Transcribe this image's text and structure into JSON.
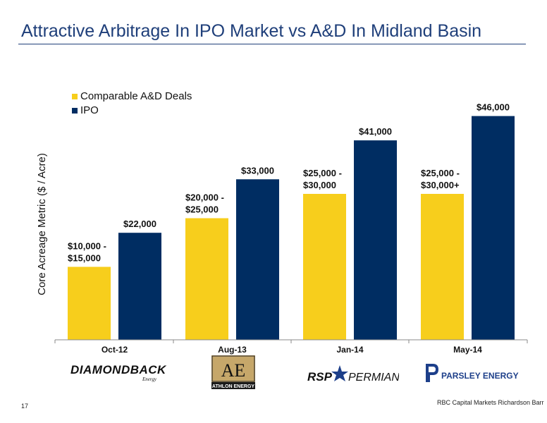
{
  "title": "Attractive Arbitrage In IPO Market vs A&D In Midland Basin",
  "colors": {
    "title": "#1f3f7a",
    "ad_series": "#f7ce1c",
    "ipo_series": "#002d62"
  },
  "chart_data": {
    "type": "bar",
    "categories": [
      "Oct-12",
      "Aug-13",
      "Jan-14",
      "May-14"
    ],
    "ylabel": "Core Acreage Metric ($ / Acre)",
    "xlabel": "",
    "ylim": [
      0,
      50000
    ],
    "grid": false,
    "legend_position": "top-left",
    "series": [
      {
        "name": "Comparable A&D Deals",
        "values": [
          15000,
          25000,
          30000,
          30000
        ],
        "labels": [
          [
            "$10,000 -",
            "$15,000"
          ],
          [
            "$20,000 -",
            "$25,000"
          ],
          [
            "$25,000 -",
            "$30,000"
          ],
          [
            "$25,000 -",
            "$30,000+"
          ]
        ]
      },
      {
        "name": "IPO",
        "values": [
          22000,
          33000,
          41000,
          46000
        ],
        "labels": [
          [
            "$22,000"
          ],
          [
            "$33,000"
          ],
          [
            "$41,000"
          ],
          [
            "$46,000"
          ]
        ]
      }
    ]
  },
  "logos": [
    {
      "name": "DIAMONDBACK",
      "sub": "Energy"
    },
    {
      "name": "ATHLON ENERGY",
      "mark": "AE"
    },
    {
      "name_left": "RSP",
      "name_right": "PERMIAN"
    },
    {
      "name": "PARSLEY ENERGY"
    }
  ],
  "footer": {
    "page_number": "17",
    "source": "RBC Capital Markets Richardson Barr"
  }
}
